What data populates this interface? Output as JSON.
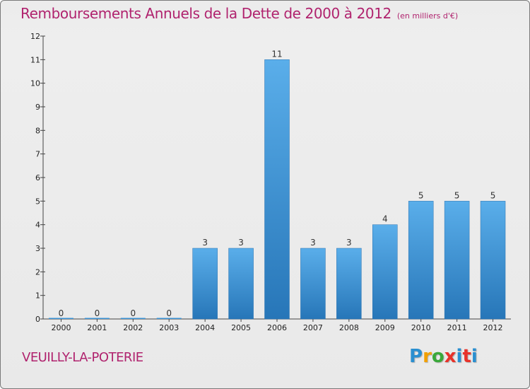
{
  "title": "Remboursements Annuels de la Dette de 2000 à 2012",
  "unit_note": "(en milliers d'€)",
  "commune": "VEUILLY-LA-POTERIE",
  "logo": {
    "text": "Proxiti",
    "letter_colors": [
      "#2a8fd0",
      "#f2a000",
      "#3aa83a",
      "#e8322a",
      "#2a8fd0",
      "#e8322a"
    ]
  },
  "chart_data": {
    "type": "bar",
    "title": "Remboursements Annuels de la Dette de 2000 à 2012",
    "subtitle": "(en milliers d'€)",
    "categories": [
      "2000",
      "2001",
      "2002",
      "2003",
      "2004",
      "2005",
      "2006",
      "2007",
      "2008",
      "2009",
      "2010",
      "2011",
      "2012"
    ],
    "values": [
      0,
      0,
      0,
      0,
      3,
      3,
      11,
      3,
      3,
      4,
      5,
      5,
      5
    ],
    "data_labels": [
      "0",
      "0",
      "0",
      "0",
      "3",
      "3",
      "11",
      "3",
      "3",
      "4",
      "5",
      "5",
      "5"
    ],
    "ylim": [
      0,
      12
    ],
    "yticks": [
      0,
      1,
      2,
      3,
      4,
      5,
      6,
      7,
      8,
      9,
      10,
      11,
      12
    ],
    "grid": false,
    "bar_color": "#3b93d6"
  }
}
